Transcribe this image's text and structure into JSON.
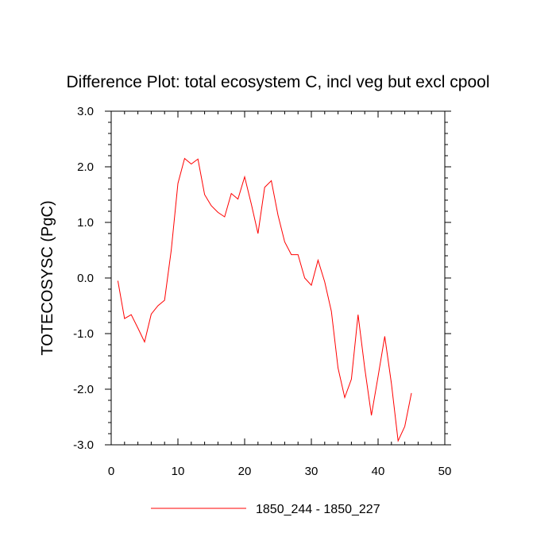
{
  "chart_data": {
    "type": "line",
    "title": "Difference Plot: total ecosystem C, incl veg but excl cpool",
    "xlabel": "",
    "ylabel": "TOTECOSYSC  (PgC)",
    "xlim": [
      0,
      50
    ],
    "ylim": [
      -3.0,
      3.0
    ],
    "xticks": [
      0,
      10,
      20,
      30,
      40,
      50
    ],
    "xtick_labels": [
      "0",
      "10",
      "20",
      "30",
      "40",
      "50"
    ],
    "yticks": [
      3.0,
      2.0,
      1.0,
      0.0,
      -1.0,
      -2.0,
      -3.0
    ],
    "ytick_labels": [
      "3.0",
      "2.0",
      "1.0",
      "0.0",
      "-1.0",
      "-2.0",
      "-3.0"
    ],
    "legend_position": "bottom-center",
    "series": [
      {
        "name": "1850_244 - 1850_227",
        "color": "#ff0000",
        "x": [
          1,
          2,
          3,
          4,
          5,
          6,
          7,
          8,
          9,
          10,
          11,
          12,
          13,
          14,
          15,
          16,
          17,
          18,
          19,
          20,
          21,
          22,
          23,
          24,
          25,
          26,
          27,
          28,
          29,
          30,
          31,
          32,
          33,
          34,
          35,
          36,
          37,
          38,
          39,
          40,
          41,
          42,
          43,
          44,
          45
        ],
        "values": [
          -0.05,
          -0.73,
          -0.66,
          -0.9,
          -1.15,
          -0.65,
          -0.5,
          -0.4,
          0.5,
          1.7,
          2.15,
          2.05,
          2.14,
          1.5,
          1.3,
          1.18,
          1.1,
          1.52,
          1.42,
          1.82,
          1.33,
          0.8,
          1.63,
          1.75,
          1.13,
          0.65,
          0.42,
          0.42,
          0.0,
          -0.13,
          0.32,
          -0.07,
          -0.6,
          -1.62,
          -2.15,
          -1.82,
          -0.66,
          -1.62,
          -2.47,
          -1.77,
          -1.05,
          -1.9,
          -2.93,
          -2.67,
          -2.07
        ]
      }
    ]
  }
}
